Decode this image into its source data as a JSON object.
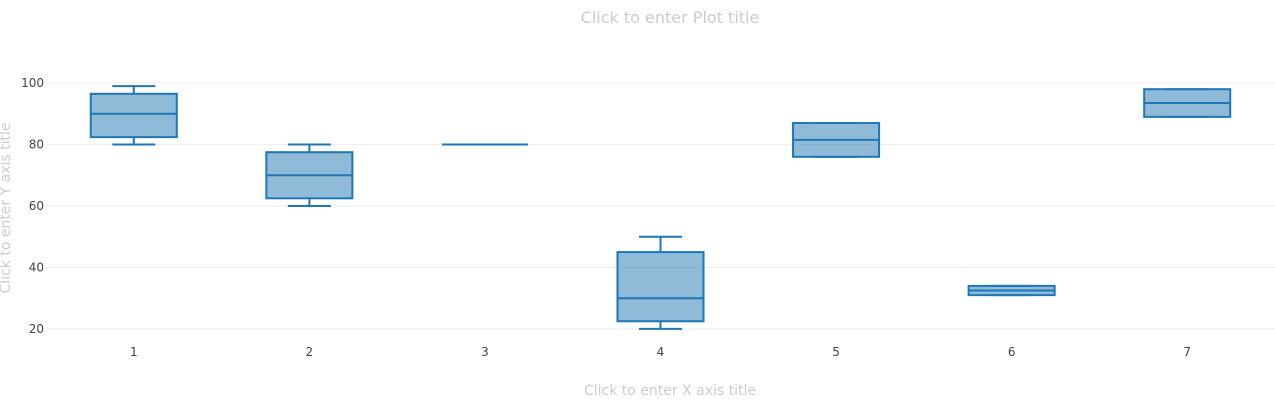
{
  "chart_data": {
    "type": "box",
    "title": "Click to enter Plot title",
    "xlabel": "Click to enter X axis title",
    "ylabel": "Click to enter Y axis title",
    "categories": [
      "1",
      "2",
      "3",
      "4",
      "5",
      "6",
      "7"
    ],
    "boxes": [
      {
        "x": "1",
        "min": 80,
        "q1": 82.4,
        "median": 90,
        "q3": 96.5,
        "max": 99
      },
      {
        "x": "2",
        "min": 60,
        "q1": 62.5,
        "median": 70,
        "q3": 77.5,
        "max": 80
      },
      {
        "x": "3",
        "min": 80,
        "q1": 80,
        "median": 80,
        "q3": 80,
        "max": 80
      },
      {
        "x": "4",
        "min": 20,
        "q1": 22.5,
        "median": 30,
        "q3": 45,
        "max": 50
      },
      {
        "x": "5",
        "min": 76,
        "q1": 76,
        "median": 81.5,
        "q3": 87,
        "max": 87
      },
      {
        "x": "6",
        "min": 31,
        "q1": 31,
        "median": 32.5,
        "q3": 34,
        "max": 34
      },
      {
        "x": "7",
        "min": 89,
        "q1": 89,
        "median": 93.5,
        "q3": 98,
        "max": 98
      }
    ],
    "yticks": [
      20,
      40,
      60,
      80,
      100
    ],
    "ylim": [
      16.4,
      107.5
    ],
    "grid": true,
    "colors": {
      "line": "#1f77b4",
      "fill": "rgba(31,119,180,0.5)",
      "grid": "#eeeeee",
      "tick": "#444444",
      "placeholder": "#cccccc"
    }
  }
}
